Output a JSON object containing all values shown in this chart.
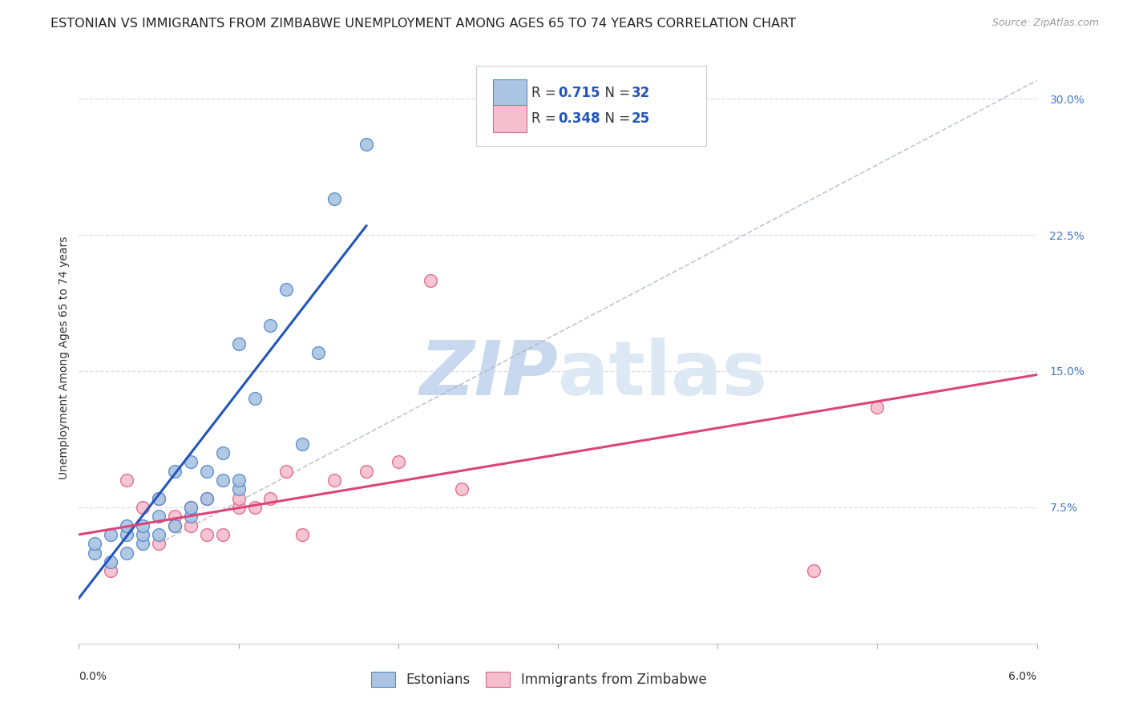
{
  "title": "ESTONIAN VS IMMIGRANTS FROM ZIMBABWE UNEMPLOYMENT AMONG AGES 65 TO 74 YEARS CORRELATION CHART",
  "source": "Source: ZipAtlas.com",
  "ylabel": "Unemployment Among Ages 65 to 74 years",
  "ytick_labels": [
    "7.5%",
    "15.0%",
    "22.5%",
    "30.0%"
  ],
  "ytick_values": [
    0.075,
    0.15,
    0.225,
    0.3
  ],
  "xlim": [
    0.0,
    0.06
  ],
  "ylim": [
    0.0,
    0.315
  ],
  "estonian_color": "#aac4e2",
  "estonian_edge_color": "#5588cc",
  "zimbabwe_color": "#f5bece",
  "zimbabwe_edge_color": "#dd6688",
  "line_estonian_color": "#2255bb",
  "line_zimbabwe_color": "#dd4477",
  "diagonal_color": "#b0b8c8",
  "background_color": "#ffffff",
  "grid_color": "#d8dde8",
  "r1": "0.715",
  "n1": "32",
  "r2": "0.348",
  "n2": "25",
  "tick_color": "#4477cc",
  "title_fontsize": 11.5,
  "axis_label_fontsize": 10,
  "tick_fontsize": 10,
  "legend_fontsize": 12,
  "source_fontsize": 9,
  "estonians_x": [
    0.001,
    0.001,
    0.002,
    0.002,
    0.003,
    0.003,
    0.003,
    0.004,
    0.004,
    0.004,
    0.005,
    0.005,
    0.005,
    0.006,
    0.006,
    0.007,
    0.007,
    0.007,
    0.008,
    0.008,
    0.009,
    0.009,
    0.01,
    0.01,
    0.01,
    0.011,
    0.012,
    0.013,
    0.014,
    0.015,
    0.016,
    0.018
  ],
  "estonians_y": [
    0.05,
    0.055,
    0.045,
    0.06,
    0.05,
    0.06,
    0.065,
    0.055,
    0.06,
    0.065,
    0.06,
    0.07,
    0.08,
    0.065,
    0.095,
    0.07,
    0.075,
    0.1,
    0.08,
    0.095,
    0.09,
    0.105,
    0.085,
    0.09,
    0.165,
    0.135,
    0.175,
    0.195,
    0.11,
    0.16,
    0.245,
    0.275
  ],
  "zimbabwe_x": [
    0.002,
    0.003,
    0.004,
    0.005,
    0.005,
    0.006,
    0.006,
    0.007,
    0.007,
    0.008,
    0.008,
    0.009,
    0.01,
    0.01,
    0.011,
    0.012,
    0.013,
    0.014,
    0.016,
    0.018,
    0.02,
    0.022,
    0.024,
    0.046,
    0.05
  ],
  "zimbabwe_y": [
    0.04,
    0.09,
    0.075,
    0.055,
    0.08,
    0.07,
    0.065,
    0.065,
    0.075,
    0.06,
    0.08,
    0.06,
    0.075,
    0.08,
    0.075,
    0.08,
    0.095,
    0.06,
    0.09,
    0.095,
    0.1,
    0.2,
    0.085,
    0.04,
    0.13
  ],
  "est_line_x0": 0.0,
  "est_line_y0": 0.025,
  "est_line_x1": 0.018,
  "est_line_y1": 0.23,
  "zim_line_x0": 0.0,
  "zim_line_y0": 0.06,
  "zim_line_x1": 0.06,
  "zim_line_y1": 0.148
}
